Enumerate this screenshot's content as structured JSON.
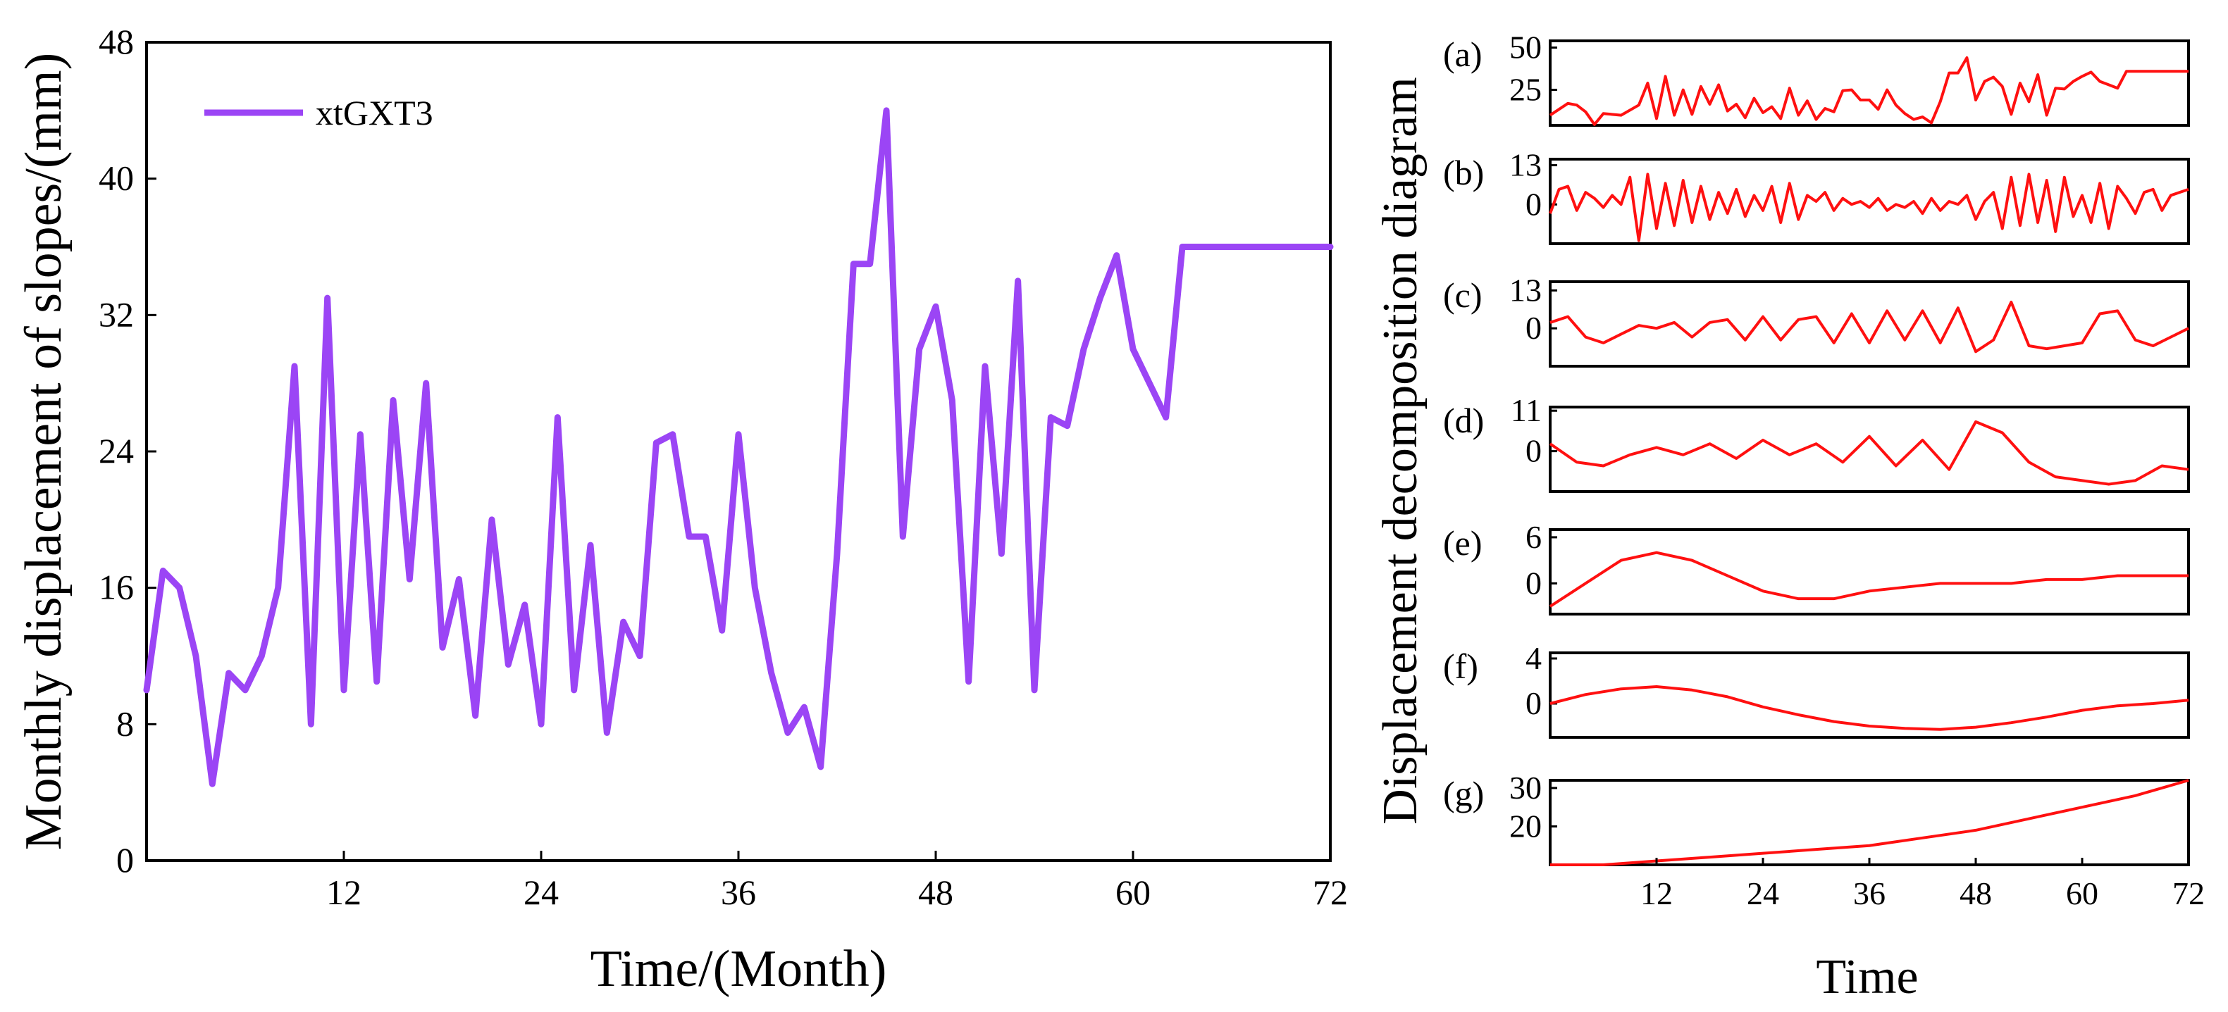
{
  "colors": {
    "main_line": "#9b45f5",
    "decomposition_line": "#ff1010",
    "axes": "#000000",
    "background": "#ffffff"
  },
  "chart_data": [
    {
      "type": "line",
      "title": "",
      "xlabel": "Time/(Month)",
      "ylabel": "Monthly displacement of slopes/(mm)",
      "xlim": [
        0,
        72
      ],
      "ylim": [
        0,
        48
      ],
      "xticks": [
        12,
        24,
        36,
        48,
        60,
        72
      ],
      "yticks": [
        0,
        8,
        16,
        24,
        32,
        40,
        48
      ],
      "x_tick_labels": [
        "12",
        "24",
        "36",
        "48",
        "60",
        "72"
      ],
      "y_tick_labels": [
        "0",
        "8",
        "16",
        "24",
        "32",
        "40",
        "48"
      ],
      "grid": false,
      "legend": {
        "position": "top-left",
        "entries": [
          "xtGXT3"
        ]
      },
      "series": [
        {
          "name": "xtGXT3",
          "x": [
            0,
            1,
            2,
            3,
            4,
            5,
            6,
            7,
            8,
            9,
            10,
            11,
            12,
            13,
            14,
            15,
            16,
            17,
            18,
            19,
            20,
            21,
            22,
            23,
            24,
            25,
            26,
            27,
            28,
            29,
            30,
            31,
            32,
            33,
            34,
            35,
            36,
            37,
            38,
            39,
            40,
            41,
            42,
            43,
            44,
            45,
            46,
            47,
            48,
            49,
            50,
            51,
            52,
            53,
            54,
            55,
            56,
            57,
            58,
            59,
            60,
            61,
            62,
            63,
            64,
            65,
            66,
            67,
            68,
            69,
            70,
            71,
            72
          ],
          "values": [
            10,
            17,
            16,
            12,
            4.5,
            11,
            10,
            12,
            16,
            29,
            8,
            33,
            10,
            25,
            10.5,
            27,
            16.5,
            28,
            12.5,
            16.5,
            8.5,
            20,
            11.5,
            15,
            8,
            26,
            10,
            18.5,
            7.5,
            14,
            12,
            24.5,
            25,
            19,
            19,
            13.5,
            25,
            16,
            11,
            7.5,
            9,
            5.5,
            18,
            35,
            35,
            44,
            19,
            30,
            32.5,
            27,
            10.5,
            29,
            18,
            34,
            10,
            26,
            25.5,
            30,
            33,
            35.5,
            30,
            28,
            26,
            36,
            36,
            36,
            36,
            36,
            36,
            36,
            36,
            36,
            36
          ]
        }
      ]
    },
    {
      "type": "line",
      "title": "Displacement decomposition diagram",
      "xlabel": "Time",
      "ylabel": "Displacement decomposition diagram",
      "xlim": [
        0,
        72
      ],
      "xticks": [
        12,
        24,
        36,
        48,
        60,
        72
      ],
      "x_tick_labels": [
        "12",
        "24",
        "36",
        "48",
        "60",
        "72"
      ],
      "grid": false,
      "panels": [
        {
          "label": "(a)",
          "ylim": [
            4,
            54
          ],
          "yticks": [
            25,
            50
          ],
          "y_tick_labels": [
            "25",
            "50"
          ],
          "x": [
            0,
            2,
            3,
            4,
            5,
            6,
            8,
            10,
            11,
            12,
            13,
            14,
            15,
            16,
            17,
            18,
            19,
            20,
            21,
            22,
            23,
            24,
            25,
            26,
            27,
            28,
            29,
            30,
            31,
            32,
            33,
            34,
            35,
            36,
            37,
            38,
            39,
            40,
            41,
            42,
            43,
            44,
            45,
            46,
            47,
            48,
            49,
            50,
            51,
            52,
            53,
            54,
            55,
            56,
            57,
            58,
            59,
            60,
            61,
            62,
            63,
            64,
            65,
            66,
            67,
            68,
            69,
            70,
            71,
            72
          ],
          "values": [
            10,
            17,
            16,
            12,
            4.5,
            11,
            10,
            16,
            29,
            8,
            33,
            10,
            25,
            10.5,
            27,
            16.5,
            28,
            12.5,
            16.5,
            8.5,
            20,
            11.5,
            15,
            8,
            26,
            10,
            18.5,
            7.5,
            14,
            12,
            24.5,
            25,
            19,
            19,
            13.5,
            25,
            16,
            11,
            7.5,
            9,
            5.5,
            18,
            35,
            35,
            44,
            19,
            30,
            32.5,
            27,
            10.5,
            29,
            18,
            34,
            10,
            26,
            25.5,
            30,
            33,
            35.5,
            30,
            28,
            26,
            36,
            36,
            36,
            36,
            36,
            36,
            36,
            36
          ]
        },
        {
          "label": "(b)",
          "ylim": [
            -13,
            15
          ],
          "yticks": [
            0,
            13
          ],
          "y_tick_labels": [
            "0",
            "13"
          ],
          "x": [
            0,
            1,
            2,
            3,
            4,
            5,
            6,
            7,
            8,
            9,
            10,
            11,
            12,
            13,
            14,
            15,
            16,
            17,
            18,
            19,
            20,
            21,
            22,
            23,
            24,
            25,
            26,
            27,
            28,
            29,
            30,
            31,
            32,
            33,
            34,
            35,
            36,
            37,
            38,
            39,
            40,
            41,
            42,
            43,
            44,
            45,
            46,
            47,
            48,
            49,
            50,
            51,
            52,
            53,
            54,
            55,
            56,
            57,
            58,
            59,
            60,
            61,
            62,
            63,
            64,
            65,
            66,
            67,
            68,
            69,
            70,
            71,
            72
          ],
          "values": [
            -3,
            5,
            6,
            -2,
            4,
            2,
            -1,
            3,
            0,
            9,
            -12,
            10,
            -8,
            7,
            -7,
            8,
            -6,
            6,
            -5,
            4,
            -3,
            5,
            -4,
            3,
            -2,
            6,
            -6,
            7,
            -5,
            3,
            1,
            4,
            -2,
            2,
            0,
            1,
            -1,
            2,
            -2,
            0,
            -1,
            1,
            -3,
            2,
            -2,
            1,
            0,
            3,
            -5,
            1,
            4,
            -8,
            9,
            -7,
            10,
            -6,
            8,
            -9,
            9,
            -4,
            3,
            -6,
            7,
            -8,
            6,
            2,
            -3,
            4,
            5,
            -2,
            3,
            4,
            5
          ]
        },
        {
          "label": "(c)",
          "ylim": [
            -13,
            16
          ],
          "yticks": [
            0,
            13
          ],
          "y_tick_labels": [
            "0",
            "13"
          ],
          "x": [
            0,
            2,
            4,
            6,
            8,
            10,
            12,
            14,
            16,
            18,
            20,
            22,
            24,
            26,
            28,
            30,
            32,
            34,
            36,
            38,
            40,
            42,
            44,
            46,
            48,
            50,
            52,
            54,
            56,
            58,
            60,
            62,
            64,
            66,
            68,
            70,
            72
          ],
          "values": [
            2,
            4,
            -3,
            -5,
            -2,
            1,
            0,
            2,
            -3,
            2,
            3,
            -4,
            4,
            -4,
            3,
            4,
            -5,
            5,
            -5,
            6,
            -4,
            6,
            -5,
            7,
            -8,
            -4,
            9,
            -6,
            -7,
            -6,
            -5,
            5,
            6,
            -4,
            -6,
            -3,
            0
          ]
        },
        {
          "label": "(d)",
          "ylim": [
            -11,
            12
          ],
          "yticks": [
            0,
            11
          ],
          "y_tick_labels": [
            "0",
            "11"
          ],
          "x": [
            0,
            3,
            6,
            9,
            12,
            15,
            18,
            21,
            24,
            27,
            30,
            33,
            36,
            39,
            42,
            45,
            48,
            51,
            54,
            57,
            60,
            63,
            66,
            69,
            72
          ],
          "values": [
            2,
            -3,
            -4,
            -1,
            1,
            -1,
            2,
            -2,
            3,
            -1,
            2,
            -3,
            4,
            -4,
            3,
            -5,
            8,
            5,
            -3,
            -7,
            -8,
            -9,
            -8,
            -4,
            -5
          ]
        },
        {
          "label": "(e)",
          "ylim": [
            -4,
            7
          ],
          "yticks": [
            0,
            6
          ],
          "y_tick_labels": [
            "0",
            "6"
          ],
          "x": [
            0,
            4,
            8,
            12,
            16,
            20,
            24,
            28,
            32,
            36,
            40,
            44,
            48,
            52,
            56,
            60,
            64,
            68,
            72
          ],
          "values": [
            -3,
            0,
            3,
            4,
            3,
            1,
            -1,
            -2,
            -2,
            -1,
            -0.5,
            0,
            0,
            0,
            0.5,
            0.5,
            1,
            1,
            1
          ]
        },
        {
          "label": "(f)",
          "ylim": [
            -3,
            4.5
          ],
          "yticks": [
            0,
            4
          ],
          "y_tick_labels": [
            "0",
            "4"
          ],
          "x": [
            0,
            4,
            8,
            12,
            16,
            20,
            24,
            28,
            32,
            36,
            40,
            44,
            48,
            52,
            56,
            60,
            64,
            68,
            72
          ],
          "values": [
            0,
            0.8,
            1.3,
            1.5,
            1.2,
            0.6,
            -0.3,
            -1,
            -1.6,
            -2,
            -2.2,
            -2.3,
            -2.1,
            -1.7,
            -1.2,
            -0.6,
            -0.2,
            0,
            0.3
          ]
        },
        {
          "label": "(g)",
          "ylim": [
            10,
            32
          ],
          "yticks": [
            20,
            30
          ],
          "y_tick_labels": [
            "20",
            "30"
          ],
          "x": [
            0,
            6,
            12,
            18,
            24,
            30,
            36,
            42,
            48,
            54,
            60,
            66,
            72
          ],
          "values": [
            10,
            10,
            11,
            12,
            13,
            14,
            15,
            17,
            19,
            22,
            25,
            28,
            32
          ]
        }
      ]
    }
  ]
}
